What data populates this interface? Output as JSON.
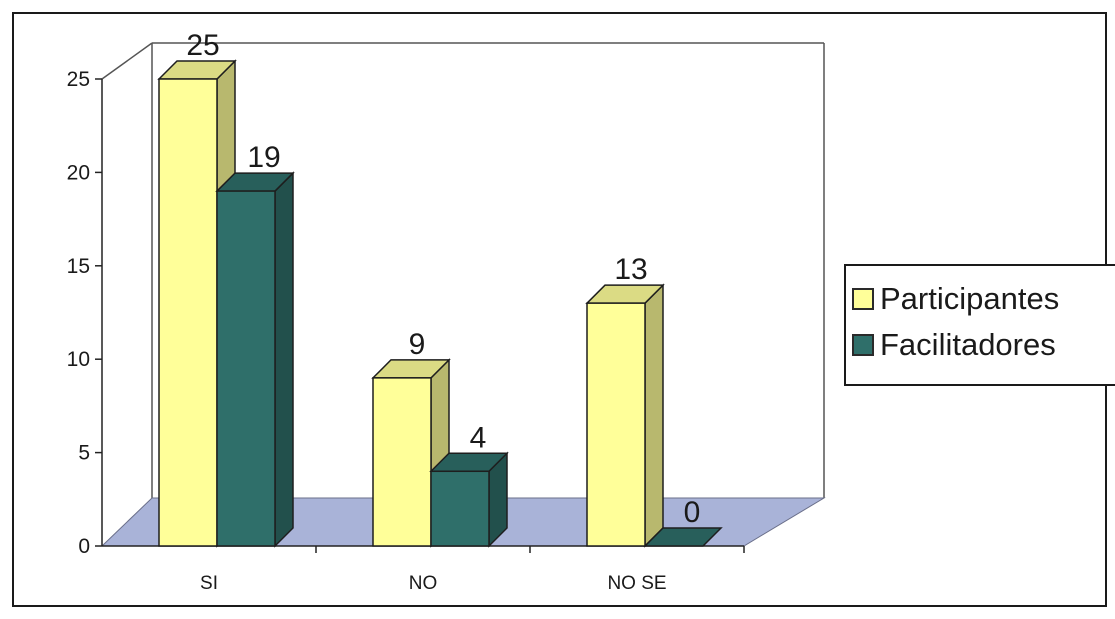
{
  "chart_data": {
    "type": "bar",
    "categories": [
      "SI",
      "NO",
      "NO SE"
    ],
    "series": [
      {
        "name": "Participantes",
        "values": [
          25,
          9,
          13
        ],
        "color": "#ffff99"
      },
      {
        "name": "Facilitadores",
        "values": [
          19,
          4,
          0
        ],
        "color": "#2f6f6a"
      }
    ],
    "data_labels": [
      [
        "25",
        "9",
        "13"
      ],
      [
        "19",
        "4",
        "0"
      ]
    ],
    "y_ticks": [
      "0",
      "5",
      "10",
      "15",
      "20",
      "25"
    ],
    "ylim": [
      0,
      25
    ],
    "legend_position": "right",
    "grid": false,
    "style": "3d-clustered-column",
    "floor_color": "#a9b3d8"
  }
}
